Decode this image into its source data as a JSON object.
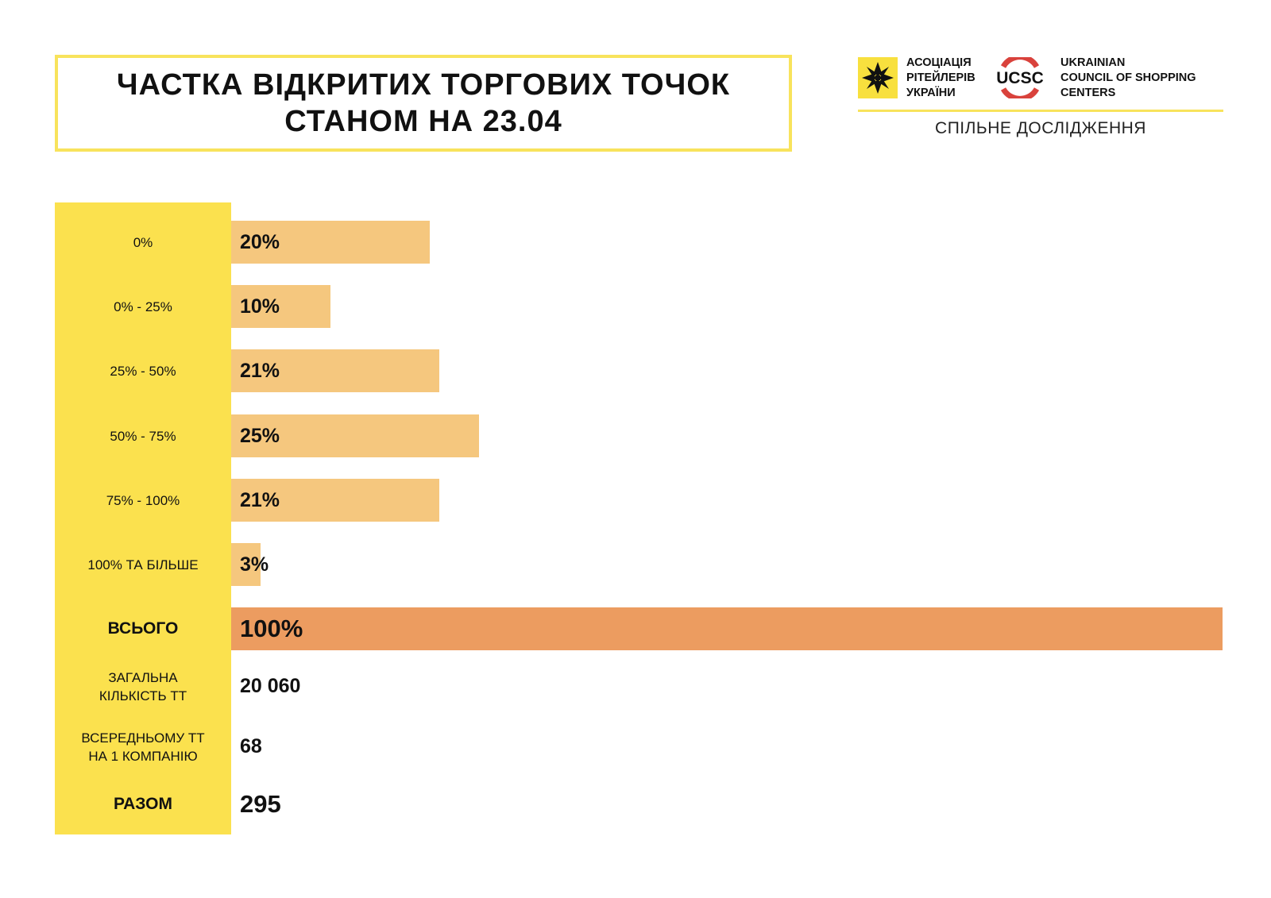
{
  "title": {
    "line1": "ЧАСТКА ВІДКРИТИХ ТОРГОВИХ ТОЧОК",
    "line2": "СТАНОМ НА 23.04"
  },
  "logos": {
    "retailers": {
      "line1": "АСОЦІАЦІЯ",
      "line2": "РІТЕЙЛЕРІВ",
      "line3": "УКРАЇНИ",
      "color": "#f8e03e"
    },
    "ucsc": {
      "mark": "UCSC",
      "line1": "UKRAINIAN",
      "line2": "COUNCIL OF SHOPPING",
      "line3": "CENTERS",
      "color": "#d9423c"
    },
    "caption": "СПІЛЬНЕ ДОСЛІДЖЕННЯ"
  },
  "chart_data": {
    "type": "bar",
    "orientation": "horizontal",
    "categories": [
      "0%",
      "0% - 25%",
      "25% - 50%",
      "50% - 75%",
      "75% - 100%",
      "100% ТА БІЛЬШЕ",
      "ВСЬОГО"
    ],
    "values": [
      20,
      10,
      21,
      25,
      21,
      3,
      100
    ],
    "value_labels": [
      "20%",
      "10%",
      "21%",
      "25%",
      "21%",
      "3%",
      "100%"
    ],
    "xlim": [
      0,
      100
    ],
    "colors": {
      "bar": "#f5c77e",
      "total": "#ec9c60",
      "label_column": "#fbe14e"
    },
    "grid": false
  },
  "stats": [
    {
      "label1": "ЗАГАЛЬНА",
      "label2": "КІЛЬКІСТЬ ТТ",
      "value": "20 060"
    },
    {
      "label1": "ВСЕРЕДНЬОМУ ТТ",
      "label2": "НА 1 КОМПАНІЮ",
      "value": "68"
    },
    {
      "label1": "РАЗОМ",
      "label2": "",
      "value": "295"
    }
  ]
}
